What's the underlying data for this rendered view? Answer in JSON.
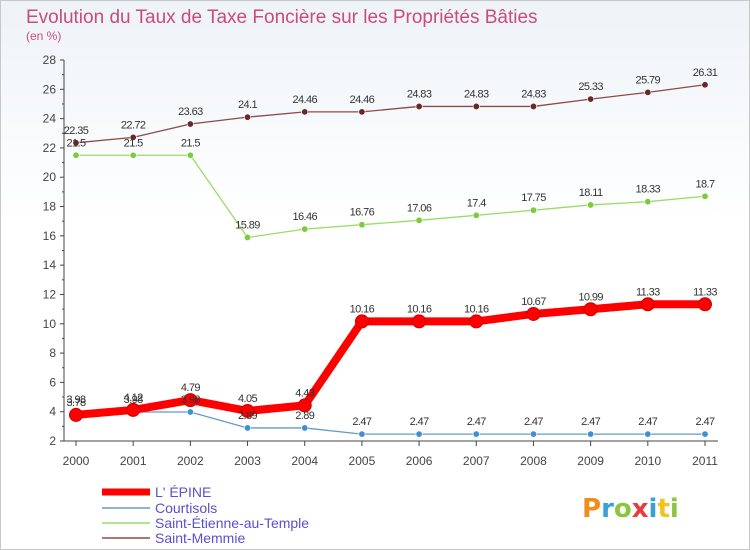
{
  "chart_data": {
    "type": "line",
    "title": "Evolution du Taux de Taxe Foncière sur les Propriétés Bâties",
    "subtitle": "(en %)",
    "xlabel": "",
    "ylabel": "(en %)",
    "ylim": [
      2,
      28
    ],
    "yticks": [
      "2",
      "4",
      "6",
      "8",
      "10",
      "12",
      "14",
      "16",
      "18",
      "20",
      "22",
      "24",
      "26",
      "28"
    ],
    "categories": [
      "2000",
      "2001",
      "2002",
      "2003",
      "2004",
      "2005",
      "2006",
      "2007",
      "2008",
      "2009",
      "2010",
      "2011"
    ],
    "series": [
      {
        "name": "L' ÉPINE",
        "color": "#ff0000",
        "markerFill": "#ff0000",
        "values": [
          3.78,
          4.12,
          4.79,
          4.05,
          4.43,
          10.16,
          10.16,
          10.16,
          10.67,
          10.99,
          11.33,
          11.33
        ],
        "labels": [
          "3.78",
          "4.12",
          "4.79",
          "4.05",
          "4.43",
          "10.16",
          "10.16",
          "10.16",
          "10.67",
          "10.99",
          "11.33",
          "11.33"
        ]
      },
      {
        "name": "Courtisols",
        "color": "#6699cc",
        "markerFill": "#3d8fd6",
        "values": [
          3.98,
          3.98,
          3.98,
          2.89,
          2.89,
          2.47,
          2.47,
          2.47,
          2.47,
          2.47,
          2.47,
          2.47
        ],
        "labels": [
          "3.98",
          "3.98",
          "3.98",
          "2.89",
          "2.89",
          "2.47",
          "2.47",
          "2.47",
          "2.47",
          "2.47",
          "2.47",
          "2.47"
        ]
      },
      {
        "name": "Saint-Étienne-au-Temple",
        "color": "#99dd66",
        "markerFill": "#7acc3a",
        "values": [
          21.5,
          21.5,
          21.5,
          15.89,
          16.46,
          16.76,
          17.06,
          17.4,
          17.75,
          18.11,
          18.33,
          18.7
        ],
        "labels": [
          "21.5",
          "21.5",
          "21.5",
          "15.89",
          "16.46",
          "16.76",
          "17.06",
          "17.4",
          "17.75",
          "18.11",
          "18.33",
          "18.7"
        ]
      },
      {
        "name": "Saint-Memmie",
        "color": "#8c4a4a",
        "markerFill": "#6b2626",
        "values": [
          22.35,
          22.72,
          23.63,
          24.1,
          24.46,
          24.46,
          24.83,
          24.83,
          24.83,
          25.33,
          25.79,
          26.31
        ],
        "labels": [
          "22.35",
          "22.72",
          "23.63",
          "24.1",
          "24.46",
          "24.46",
          "24.83",
          "24.83",
          "24.83",
          "25.33",
          "25.79",
          "26.31"
        ]
      }
    ],
    "legend": [
      "L' ÉPINE",
      "Courtisols",
      "Saint-Étienne-au-Temple",
      "Saint-Memmie"
    ],
    "grid": false
  },
  "logo": {
    "letters": [
      "P",
      "r",
      "o",
      "x",
      "i",
      "t",
      "i"
    ],
    "colors": [
      "#f28c1e",
      "#3aa0d8",
      "#8cc63f",
      "#e63c3c",
      "#3aa0d8",
      "#f2c21e",
      "#3aa0d8"
    ]
  }
}
